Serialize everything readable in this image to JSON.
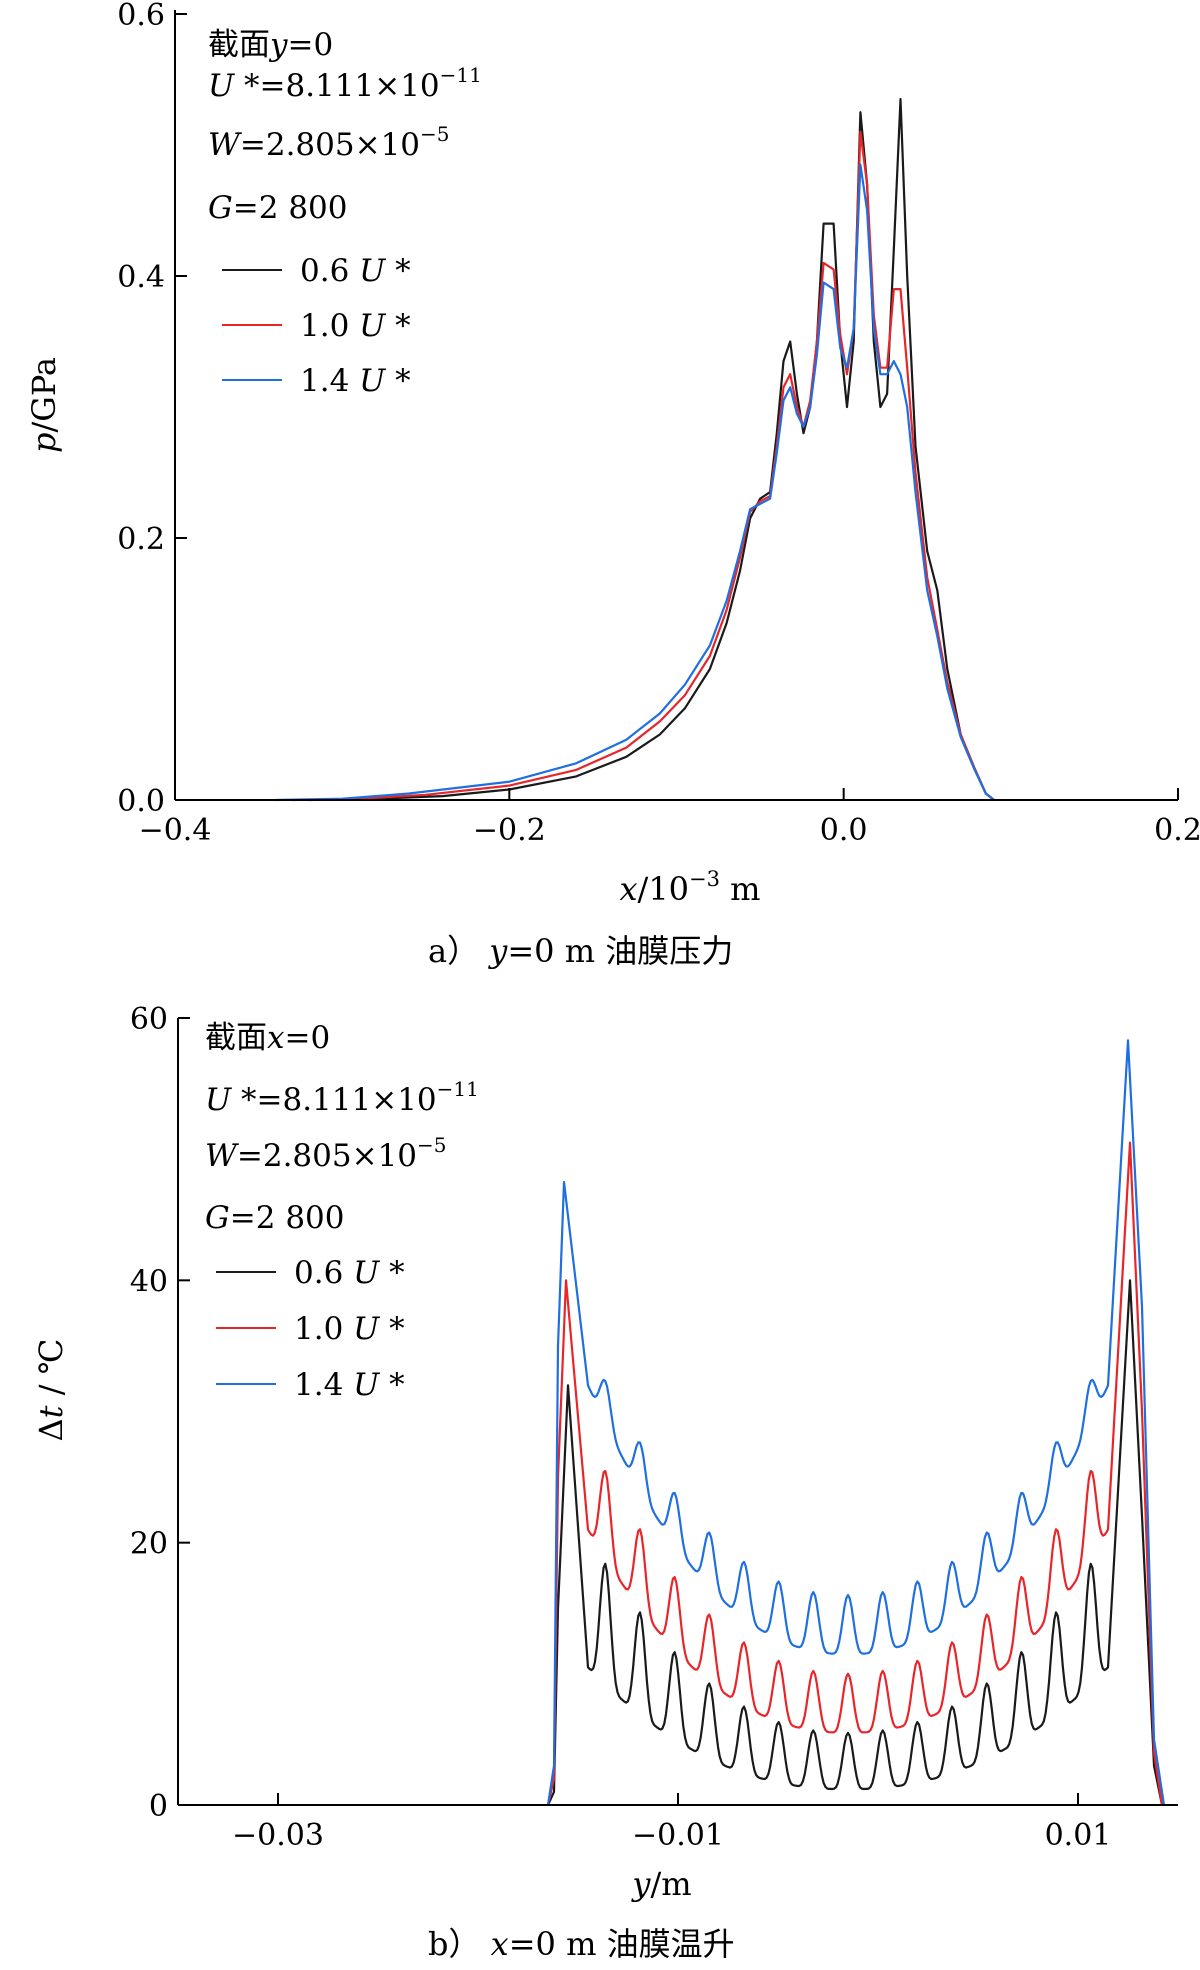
{
  "charts": [
    {
      "caption_prefix": "a）",
      "caption": "y=0 m 油膜压力",
      "xlabel": "x/10⁻³ m",
      "ylabel": "p/GPa",
      "annotations": [
        "截面y=0",
        "U*=8.111×10⁻¹¹",
        "W=2.805×10⁻⁵",
        "G=2 800"
      ],
      "legend": [
        "0.6 U*",
        "1.0 U*",
        "1.4 U*"
      ]
    },
    {
      "caption_prefix": "b）",
      "caption": "x=0 m 油膜温升",
      "xlabel": "y/m",
      "ylabel": "Δt / ℃",
      "annotations": [
        "截面x=0",
        "U*=8.111×10⁻¹¹",
        "W=2.805×10⁻⁵",
        "G=2 800"
      ],
      "legend": [
        "0.6 U*",
        "1.0 U*",
        "1.4 U*"
      ]
    }
  ],
  "colors": {
    "s06": "#1a1a1a",
    "s10": "#e8262a",
    "s14": "#1f6fe0",
    "axis": "#000000"
  },
  "chart_data": [
    {
      "type": "line",
      "title": "y=0 m 油膜压力",
      "xlabel": "x/10⁻³ m",
      "ylabel": "p/GPa",
      "xlim": [
        -0.4,
        0.2
      ],
      "ylim": [
        0.0,
        0.6
      ],
      "xticks": [
        -0.4,
        -0.2,
        0.0,
        0.2
      ],
      "yticks": [
        0.0,
        0.2,
        0.4,
        0.6
      ],
      "xtick_labels": [
        "−0.4",
        "−0.2",
        "0.0",
        "0.2"
      ],
      "ytick_labels": [
        "0.0",
        "0.2",
        "0.4",
        "0.6"
      ],
      "legend_position": "top-left",
      "series": [
        {
          "name": "0.6 U*",
          "color": "#1a1a1a",
          "points": [
            [
              -0.32,
              0
            ],
            [
              -0.28,
              0.001
            ],
            [
              -0.24,
              0.003
            ],
            [
              -0.2,
              0.008
            ],
            [
              -0.16,
              0.018
            ],
            [
              -0.13,
              0.033
            ],
            [
              -0.11,
              0.05
            ],
            [
              -0.095,
              0.07
            ],
            [
              -0.08,
              0.1
            ],
            [
              -0.07,
              0.135
            ],
            [
              -0.062,
              0.175
            ],
            [
              -0.056,
              0.215
            ],
            [
              -0.05,
              0.23
            ],
            [
              -0.044,
              0.235
            ],
            [
              -0.04,
              0.28
            ],
            [
              -0.036,
              0.335
            ],
            [
              -0.032,
              0.35
            ],
            [
              -0.028,
              0.31
            ],
            [
              -0.024,
              0.28
            ],
            [
              -0.02,
              0.3
            ],
            [
              -0.016,
              0.35
            ],
            [
              -0.012,
              0.44
            ],
            [
              -0.006,
              0.44
            ],
            [
              -0.002,
              0.35
            ],
            [
              0.002,
              0.3
            ],
            [
              0.006,
              0.35
            ],
            [
              0.01,
              0.525
            ],
            [
              0.014,
              0.47
            ],
            [
              0.018,
              0.35
            ],
            [
              0.022,
              0.3
            ],
            [
              0.026,
              0.31
            ],
            [
              0.03,
              0.42
            ],
            [
              0.034,
              0.535
            ],
            [
              0.038,
              0.4
            ],
            [
              0.043,
              0.27
            ],
            [
              0.05,
              0.19
            ],
            [
              0.056,
              0.16
            ],
            [
              0.062,
              0.1
            ],
            [
              0.07,
              0.05
            ],
            [
              0.078,
              0.025
            ],
            [
              0.085,
              0.005
            ],
            [
              0.09,
              0
            ]
          ]
        },
        {
          "name": "1.0 U*",
          "color": "#e8262a",
          "points": [
            [
              -0.33,
              0
            ],
            [
              -0.29,
              0.001
            ],
            [
              -0.25,
              0.004
            ],
            [
              -0.2,
              0.011
            ],
            [
              -0.16,
              0.023
            ],
            [
              -0.13,
              0.04
            ],
            [
              -0.11,
              0.06
            ],
            [
              -0.095,
              0.08
            ],
            [
              -0.08,
              0.11
            ],
            [
              -0.07,
              0.145
            ],
            [
              -0.062,
              0.185
            ],
            [
              -0.056,
              0.22
            ],
            [
              -0.05,
              0.228
            ],
            [
              -0.044,
              0.232
            ],
            [
              -0.04,
              0.27
            ],
            [
              -0.036,
              0.315
            ],
            [
              -0.032,
              0.325
            ],
            [
              -0.028,
              0.3
            ],
            [
              -0.024,
              0.285
            ],
            [
              -0.02,
              0.305
            ],
            [
              -0.016,
              0.35
            ],
            [
              -0.012,
              0.41
            ],
            [
              -0.006,
              0.405
            ],
            [
              -0.002,
              0.355
            ],
            [
              0.002,
              0.325
            ],
            [
              0.006,
              0.36
            ],
            [
              0.01,
              0.51
            ],
            [
              0.014,
              0.47
            ],
            [
              0.018,
              0.37
            ],
            [
              0.022,
              0.33
            ],
            [
              0.026,
              0.33
            ],
            [
              0.03,
              0.39
            ],
            [
              0.034,
              0.39
            ],
            [
              0.038,
              0.33
            ],
            [
              0.043,
              0.25
            ],
            [
              0.05,
              0.17
            ],
            [
              0.056,
              0.13
            ],
            [
              0.062,
              0.09
            ],
            [
              0.07,
              0.05
            ],
            [
              0.078,
              0.025
            ],
            [
              0.085,
              0.005
            ],
            [
              0.09,
              0
            ]
          ]
        },
        {
          "name": "1.4 U*",
          "color": "#1f6fe0",
          "points": [
            [
              -0.34,
              0
            ],
            [
              -0.3,
              0.001
            ],
            [
              -0.26,
              0.005
            ],
            [
              -0.2,
              0.014
            ],
            [
              -0.16,
              0.028
            ],
            [
              -0.13,
              0.046
            ],
            [
              -0.11,
              0.066
            ],
            [
              -0.095,
              0.088
            ],
            [
              -0.08,
              0.118
            ],
            [
              -0.07,
              0.152
            ],
            [
              -0.062,
              0.19
            ],
            [
              -0.056,
              0.222
            ],
            [
              -0.05,
              0.226
            ],
            [
              -0.044,
              0.23
            ],
            [
              -0.04,
              0.265
            ],
            [
              -0.036,
              0.305
            ],
            [
              -0.032,
              0.315
            ],
            [
              -0.028,
              0.295
            ],
            [
              -0.024,
              0.285
            ],
            [
              -0.02,
              0.3
            ],
            [
              -0.016,
              0.34
            ],
            [
              -0.012,
              0.395
            ],
            [
              -0.006,
              0.39
            ],
            [
              -0.002,
              0.345
            ],
            [
              0.002,
              0.33
            ],
            [
              0.006,
              0.36
            ],
            [
              0.01,
              0.485
            ],
            [
              0.014,
              0.45
            ],
            [
              0.018,
              0.36
            ],
            [
              0.022,
              0.325
            ],
            [
              0.026,
              0.325
            ],
            [
              0.03,
              0.335
            ],
            [
              0.034,
              0.325
            ],
            [
              0.038,
              0.3
            ],
            [
              0.043,
              0.235
            ],
            [
              0.05,
              0.16
            ],
            [
              0.056,
              0.125
            ],
            [
              0.062,
              0.085
            ],
            [
              0.07,
              0.048
            ],
            [
              0.078,
              0.024
            ],
            [
              0.085,
              0.005
            ],
            [
              0.09,
              0
            ]
          ]
        }
      ]
    },
    {
      "type": "line",
      "title": "x=0 m 油膜温升",
      "xlabel": "y/m",
      "ylabel": "Δt / ℃",
      "xlim": [
        -0.035,
        0.015
      ],
      "ylim": [
        0,
        60
      ],
      "xticks": [
        -0.03,
        -0.01,
        0.01
      ],
      "yticks": [
        0,
        20,
        40,
        60
      ],
      "xtick_labels": [
        "−0.03",
        "−0.01",
        "0.01"
      ],
      "ytick_labels": [
        "0",
        "20",
        "40",
        "60"
      ],
      "legend_position": "top-left",
      "series": [
        {
          "name": "0.6 U*",
          "color": "#1a1a1a",
          "edges": {
            "left_rise": [
              [
                -0.0165,
                0
              ],
              [
                -0.0162,
                1
              ],
              [
                -0.016,
                15
              ]
            ],
            "left_peak": [
              -0.0155,
              32
            ],
            "right_peak": [
              0.0126,
              40
            ],
            "right_fall": [
              [
                0.0132,
                22
              ],
              [
                0.0138,
                3
              ],
              [
                0.0142,
                0
              ]
            ]
          },
          "envelope": {
            "base_min": 1.2,
            "base_edge": 10.5,
            "peak_min": 5.5,
            "peak_edge": 20.5
          }
        },
        {
          "name": "1.0 U*",
          "color": "#e8262a",
          "edges": {
            "left_rise": [
              [
                -0.0165,
                0
              ],
              [
                -0.0162,
                2
              ],
              [
                -0.016,
                25
              ]
            ],
            "left_peak": [
              -0.0156,
              40
            ],
            "right_peak": [
              0.0126,
              50.5
            ],
            "right_fall": [
              [
                0.0132,
                30
              ],
              [
                0.0138,
                4
              ],
              [
                0.0142,
                0
              ]
            ]
          },
          "envelope": {
            "base_min": 5.5,
            "base_edge": 21,
            "peak_min": 10,
            "peak_edge": 28
          }
        },
        {
          "name": "1.4 U*",
          "color": "#1f6fe0",
          "edges": {
            "left_rise": [
              [
                -0.0165,
                0
              ],
              [
                -0.0162,
                3
              ],
              [
                -0.016,
                35
              ]
            ],
            "left_peak": [
              -0.0157,
              47.5
            ],
            "right_peak": [
              0.0125,
              58.3
            ],
            "right_fall": [
              [
                0.0132,
                38
              ],
              [
                0.0138,
                5
              ],
              [
                0.0143,
                0
              ]
            ]
          },
          "envelope": {
            "base_min": 11.5,
            "base_edge": 32,
            "peak_min": 16,
            "peak_edge": 35
          }
        }
      ]
    }
  ]
}
